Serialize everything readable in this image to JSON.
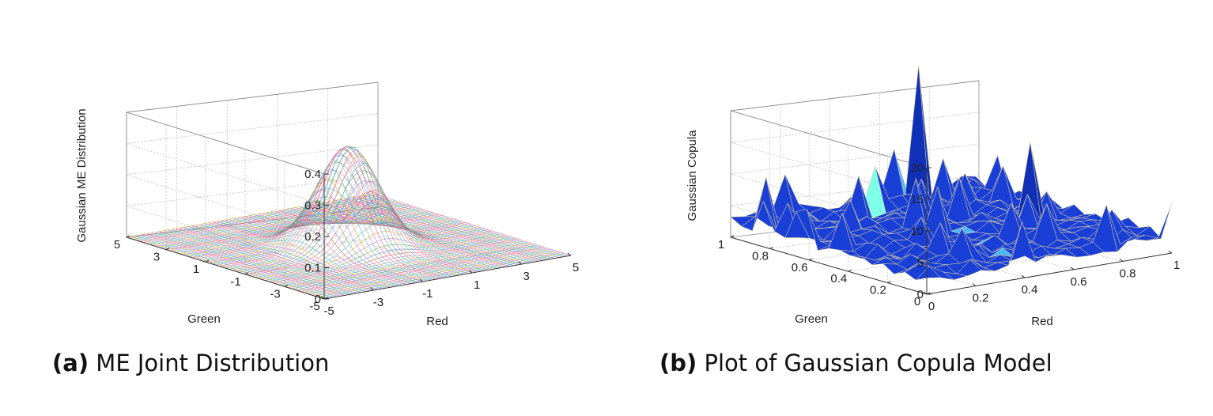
{
  "chart_data": [
    {
      "type": "surface",
      "style": "mesh",
      "caption_label": "(a)",
      "caption_text": "ME Joint Distribution",
      "xlabel": "Red",
      "ylabel": "Green",
      "zlabel": "Gaussian ME Distribution",
      "xlim": [
        -5,
        5
      ],
      "ylim": [
        -5,
        5
      ],
      "zlim": [
        0,
        0.4
      ],
      "xticks": [
        "-5",
        "-3",
        "-1",
        "1",
        "3",
        "5"
      ],
      "yticks": [
        "-5",
        "-3",
        "-1",
        "1",
        "3",
        "5"
      ],
      "zticks": [
        "0",
        "0.1",
        "0.2",
        "0.3",
        "0.4"
      ],
      "grid": true,
      "peak": {
        "x": 0,
        "y": 0,
        "z": 0.32
      },
      "spread": 1
    },
    {
      "type": "surface",
      "style": "faceted",
      "caption_label": "(b)",
      "caption_text": "Plot of Gaussian Copula Model",
      "xlabel": "Red",
      "ylabel": "Green",
      "zlabel": "Gaussian Copula",
      "xlim": [
        0,
        1
      ],
      "ylim": [
        0,
        1
      ],
      "zlim": [
        0,
        20
      ],
      "xticks": [
        "0",
        "0.2",
        "0.4",
        "0.6",
        "0.8",
        "1"
      ],
      "yticks": [
        "0",
        "0.2",
        "0.4",
        "0.6",
        "0.8",
        "1"
      ],
      "zticks": [
        "0",
        "5",
        "10",
        "15",
        "20"
      ],
      "grid": true,
      "colors": {
        "face": "#1a3fd6",
        "edge": "#e8d9a0",
        "light": "#4ab8ff",
        "cyan": "#7fffe8",
        "red": "#a01010"
      },
      "peaks": [
        {
          "x": 0.7,
          "y": 0.95,
          "z": 23
        },
        {
          "x": 0.8,
          "y": 0.45,
          "z": 15
        },
        {
          "x": 0.05,
          "y": 0.8,
          "z": 7
        },
        {
          "x": 0.5,
          "y": 0.9,
          "z": 9
        },
        {
          "x": 0.65,
          "y": 0.65,
          "z": 8
        },
        {
          "x": 0.25,
          "y": 0.25,
          "z": 7
        },
        {
          "x": 0.9,
          "y": 0.5,
          "z": 6
        },
        {
          "x": 0.35,
          "y": 0.45,
          "z": 6
        }
      ]
    }
  ]
}
